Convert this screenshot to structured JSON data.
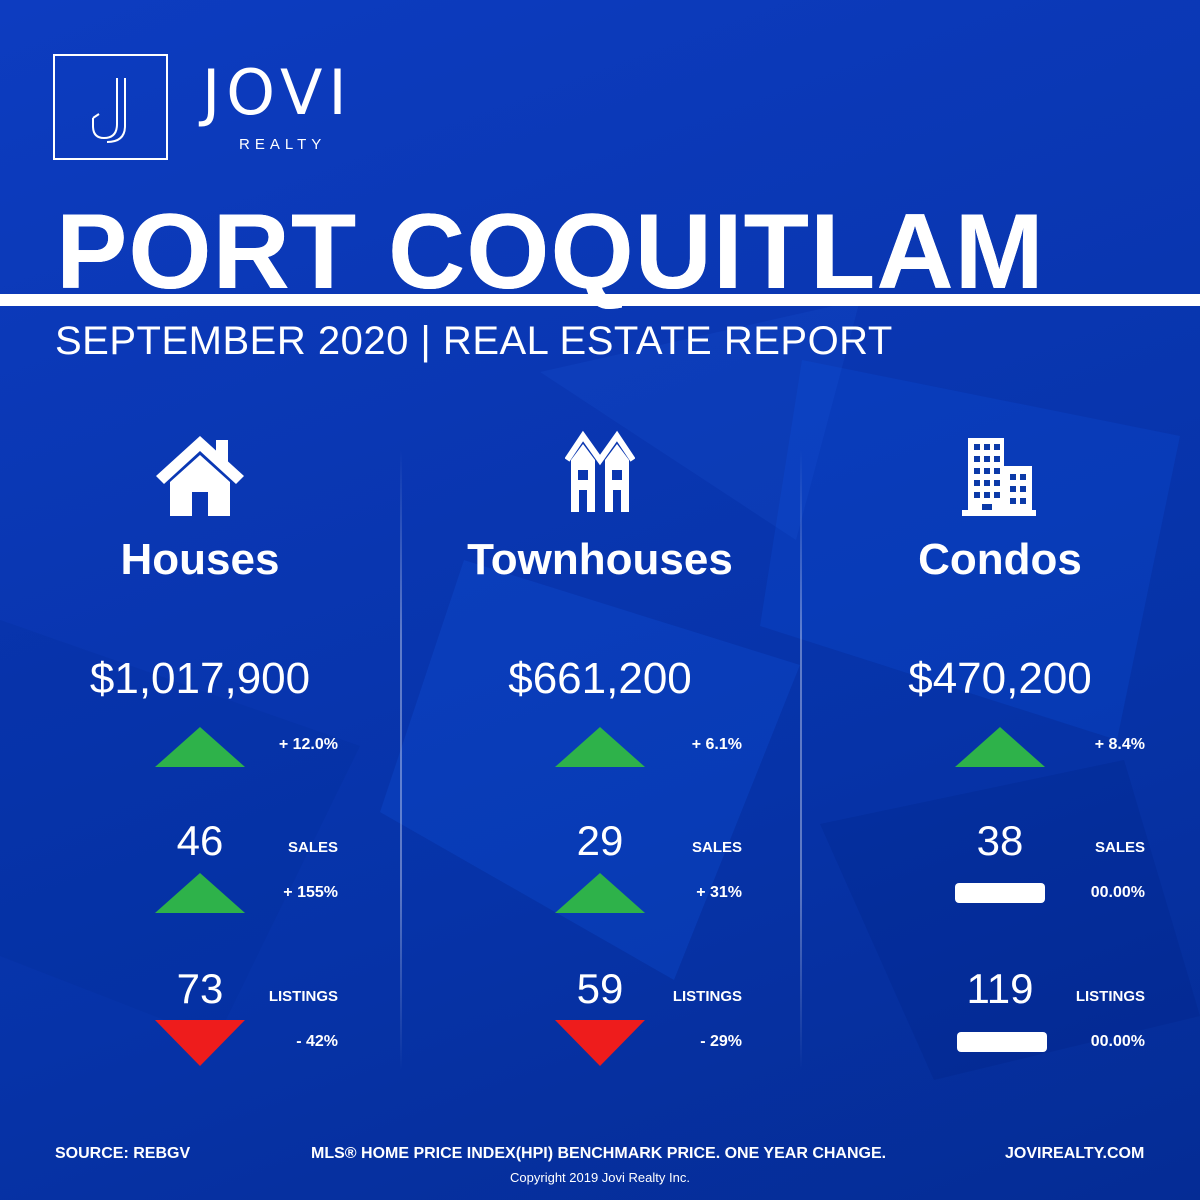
{
  "brand": {
    "name": "JOVI",
    "subtitle": "REALTY",
    "website": "JOVIREALTY.COM",
    "logo_icon": "letter-j-monogram"
  },
  "title": "PORT COQUITLAM",
  "subtitle": "SEPTEMBER 2020 | REAL ESTATE REPORT",
  "colors": {
    "background": "#0b3aa8",
    "up": "#2eb24a",
    "down": "#ee1c1c",
    "neutral": "#ffffff"
  },
  "categories": [
    {
      "icon": "house-icon",
      "name": "Houses",
      "price": "$1,017,900",
      "price_change": {
        "direction": "up",
        "text": "+ 12.0%"
      },
      "sales": {
        "value": "46",
        "label": "SALES",
        "direction": "up",
        "change": "+ 155%"
      },
      "listings": {
        "value": "73",
        "label": "LISTINGS",
        "direction": "down",
        "change": "- 42%"
      }
    },
    {
      "icon": "townhouse-icon",
      "name": "Townhouses",
      "price": "$661,200",
      "price_change": {
        "direction": "up",
        "text": "+ 6.1%"
      },
      "sales": {
        "value": "29",
        "label": "SALES",
        "direction": "up",
        "change": "+ 31%"
      },
      "listings": {
        "value": "59",
        "label": "LISTINGS",
        "direction": "down",
        "change": "- 29%"
      }
    },
    {
      "icon": "condo-building-icon",
      "name": "Condos",
      "price": "$470,200",
      "price_change": {
        "direction": "up",
        "text": "+ 8.4%"
      },
      "sales": {
        "value": "38",
        "label": "SALES",
        "direction": "flat",
        "change": "00.00%"
      },
      "listings": {
        "value": "119",
        "label": "LISTINGS",
        "direction": "flat",
        "change": "00.00%"
      }
    }
  ],
  "footer": {
    "source": "SOURCE:  REBGV",
    "note": "MLS® HOME PRICE INDEX(HPI) BENCHMARK PRICE. ONE YEAR CHANGE.",
    "copyright": "Copyright 2019 Jovi Realty Inc."
  }
}
